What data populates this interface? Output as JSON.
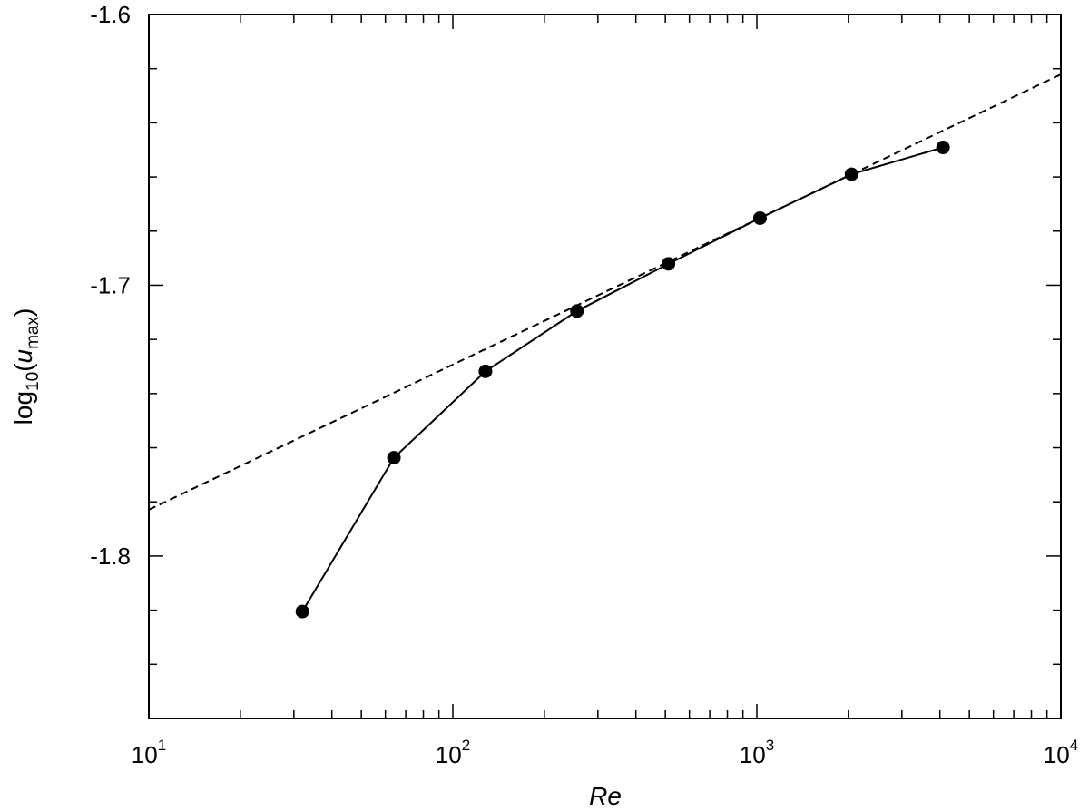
{
  "chart_data": {
    "type": "line",
    "title": "",
    "xlabel": "Re",
    "ylabel": {
      "prefix": "log",
      "prefix_subscript": "10",
      "open": "(",
      "variable": "u",
      "variable_subscript": "max",
      "close": ")"
    },
    "x_scale": "log",
    "xlim": [
      10,
      10000
    ],
    "ylim": [
      -1.86,
      -1.6
    ],
    "x_ticks": [
      {
        "base": "10",
        "exp": "1"
      },
      {
        "base": "10",
        "exp": "2"
      },
      {
        "base": "10",
        "exp": "3"
      },
      {
        "base": "10",
        "exp": "4"
      }
    ],
    "y_ticks": [
      "-1.6",
      "-1.7",
      "-1.8"
    ],
    "grid": false,
    "series": [
      {
        "style": "solid-line-with-filled-circles",
        "color": "#000000",
        "x": [
          32,
          64,
          128,
          256,
          512,
          1024,
          2048,
          4096
        ],
        "y": [
          -1.8205,
          -1.7637,
          -1.7318,
          -1.7095,
          -1.6921,
          -1.6752,
          -1.659,
          -1.6491
        ]
      },
      {
        "style": "dashed-line",
        "color": "#000000",
        "x": [
          10,
          10000
        ],
        "y": [
          -1.7829,
          -1.6221
        ]
      }
    ]
  }
}
